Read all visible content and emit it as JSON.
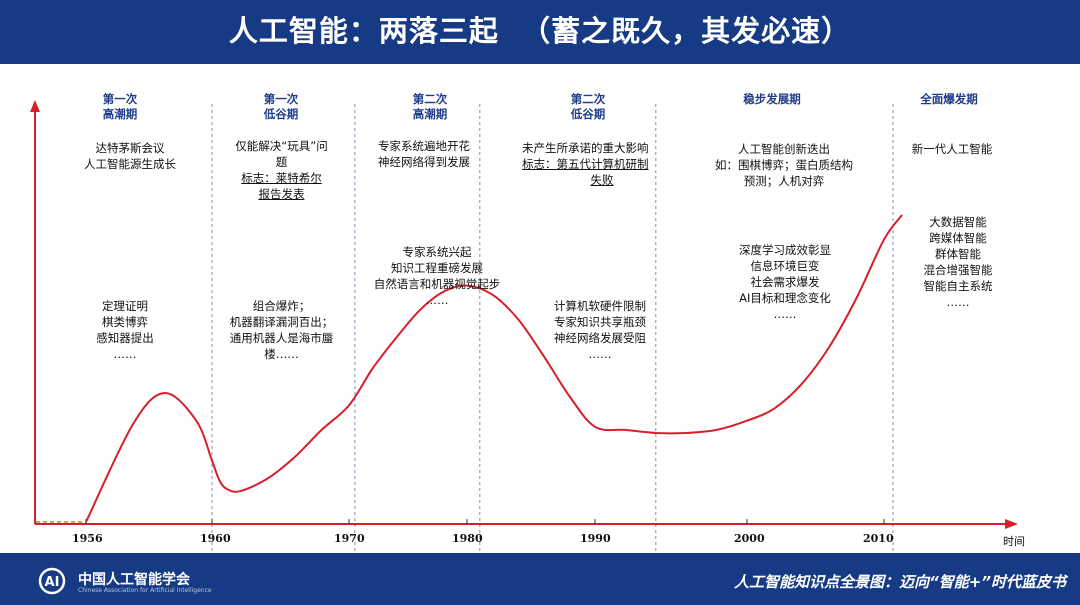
{
  "title": "人工智能：两落三起  （蓄之既久，其发必速）",
  "phases": [
    {
      "line1": "第一次",
      "line2": "高潮期"
    },
    {
      "line1": "第一次",
      "line2": "低谷期"
    },
    {
      "line1": "第二次",
      "line2": "高潮期"
    },
    {
      "line1": "第二次",
      "line2": "低谷期"
    },
    {
      "line1": "稳步发展期",
      "line2": ""
    },
    {
      "line1": "全面爆发期",
      "line2": ""
    }
  ],
  "upper_notes": [
    {
      "lines": [
        "达特茅斯会议",
        "人工智能源生成长"
      ]
    },
    {
      "lines": [
        "仅能解决“玩具”问",
        "题",
        "标志：莱特希尔",
        "报告发表"
      ]
    },
    {
      "lines": [
        "专家系统遍地开花",
        "神经网络得到发展"
      ]
    },
    {
      "lines": [
        "未产生所承诺的重大影响",
        "标志：第五代计算机研制",
        "失败"
      ]
    },
    {
      "lines": [
        "人工智能创新迭出",
        "如：围棋博弈；蛋白质结构",
        "预测；人机对弈"
      ]
    },
    {
      "lines": [
        "新一代人工智能"
      ]
    }
  ],
  "lower_notes": [
    {
      "lines": [
        "定理证明",
        "棋类博弈",
        "感知器提出",
        "……"
      ]
    },
    {
      "lines": [
        "组合爆炸；",
        "机器翻译漏洞百出；",
        "通用机器人是海市蜃",
        "楼……"
      ]
    },
    {
      "lines": [
        "专家系统兴起",
        "知识工程重磅发展",
        "自然语言和机器视觉起步",
        "……"
      ]
    },
    {
      "lines": [
        "计算机软硬件限制",
        "专家知识共享瓶颈",
        "神经网络发展受阻",
        "……"
      ]
    },
    {
      "lines": [
        "深度学习成效彰显",
        "信息环境巨变",
        "社会需求爆发",
        "AI目标和理念变化",
        "……"
      ]
    },
    {
      "lines": [
        "大数据智能",
        "跨媒体智能",
        "群体智能",
        "混合增强智能",
        "智能自主系统",
        "……"
      ]
    }
  ],
  "chart_data": {
    "type": "line",
    "title": "",
    "xlabel": "时间",
    "ylabel": "",
    "x_ticks": [
      "1956",
      "1960",
      "1970",
      "1980",
      "1990",
      "2000",
      "2010"
    ],
    "x_tick_values": [
      1956,
      1960,
      1970,
      1980,
      1990,
      2000,
      2010
    ],
    "phase_boundaries": [
      1956,
      1960,
      1970.5,
      1981,
      1994,
      2010.5
    ],
    "series": [
      {
        "color": "#d61f2b",
        "x": [
          1956,
          1957.5,
          1958.5,
          1959.5,
          1960,
          1960.5,
          1961,
          1962,
          1964,
          1966,
          1968,
          1970,
          1972,
          1974,
          1976,
          1978,
          1980,
          1982,
          1984,
          1986,
          1988,
          1990,
          1992,
          1994,
          1996,
          1998,
          2000,
          2002,
          2004,
          2006,
          2008,
          2010,
          2011
        ],
        "values": [
          0,
          0.32,
          0.42,
          0.33,
          0.2,
          0.14,
          0.11,
          0.1,
          0.14,
          0.21,
          0.3,
          0.38,
          0.5,
          0.6,
          0.69,
          0.75,
          0.77,
          0.74,
          0.66,
          0.54,
          0.41,
          0.31,
          0.3,
          0.29,
          0.29,
          0.3,
          0.33,
          0.37,
          0.45,
          0.57,
          0.73,
          0.92,
          1.0
        ]
      }
    ],
    "grid": false
  },
  "footer": {
    "org_name": "中国人工智能学会",
    "org_en": "Chinese Association for Artificial Intelligence",
    "logo_text": "AI",
    "right_text": "人工智能知识点全景图：迈向“智能+”时代蓝皮书"
  },
  "colors": {
    "header_bg": "#163a83",
    "curve": "#d61f2b",
    "axis": "#d61f2b",
    "phase_title": "#1f3d8c",
    "divider": "#7a8fc0"
  }
}
